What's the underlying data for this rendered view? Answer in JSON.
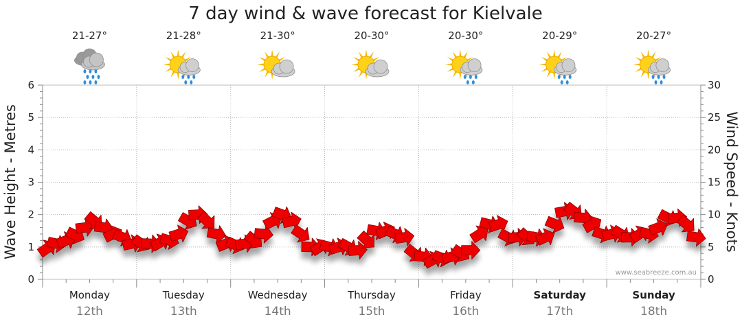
{
  "chart_data": {
    "type": "line",
    "title": "7 day wind & wave forecast for Kielvale",
    "y_left_label": "Wave Height - Metres",
    "y_right_label": "Wind Speed - Knots",
    "y_left_range": [
      0,
      6
    ],
    "y_right_range": [
      0,
      30
    ],
    "y_left_ticks": [
      "0",
      "1",
      "2",
      "3",
      "4",
      "5",
      "6"
    ],
    "y_right_ticks": [
      "0",
      "5",
      "10",
      "15",
      "20",
      "25",
      "30"
    ],
    "grid": true,
    "credit": "www.seabreeze.com.au",
    "days": [
      {
        "day": "Monday",
        "date": "12th",
        "temp": "21-27°",
        "icon": "rain-cloud-icon",
        "bold": false
      },
      {
        "day": "Tuesday",
        "date": "13th",
        "temp": "21-28°",
        "icon": "sun-rain-icon",
        "bold": false
      },
      {
        "day": "Wednesday",
        "date": "14th",
        "temp": "21-30°",
        "icon": "sun-cloud-icon",
        "bold": false
      },
      {
        "day": "Thursday",
        "date": "15th",
        "temp": "20-30°",
        "icon": "sun-cloud-icon",
        "bold": false
      },
      {
        "day": "Friday",
        "date": "16th",
        "temp": "20-30°",
        "icon": "sun-rain-icon",
        "bold": false
      },
      {
        "day": "Saturday",
        "date": "17th",
        "temp": "20-29°",
        "icon": "sun-rain-icon",
        "bold": true
      },
      {
        "day": "Sunday",
        "date": "18th",
        "temp": "20-27°",
        "icon": "sun-rain-icon",
        "bold": true
      }
    ],
    "series": [
      {
        "name": "Wind Speed",
        "color": "#ee0000",
        "x_days": [
          0,
          0.1,
          0.2,
          0.3,
          0.4,
          0.5,
          0.6,
          0.7,
          0.8,
          0.9,
          1.0,
          1.1,
          1.2,
          1.3,
          1.4,
          1.5,
          1.6,
          1.7,
          1.8,
          1.9,
          2.0,
          2.1,
          2.2,
          2.3,
          2.4,
          2.5,
          2.6,
          2.7,
          2.8,
          2.9,
          3.0,
          3.1,
          3.2,
          3.3,
          3.4,
          3.5,
          3.6,
          3.7,
          3.8,
          3.9,
          4.0,
          4.1,
          4.2,
          4.3,
          4.4,
          4.5,
          4.6,
          4.7,
          4.8,
          4.9,
          5.0,
          5.1,
          5.2,
          5.3,
          5.4,
          5.5,
          5.6,
          5.7,
          5.8,
          5.9,
          6.0,
          6.1,
          6.2,
          6.3,
          6.4,
          6.5,
          6.6,
          6.7,
          6.8,
          6.9
        ],
        "knots": [
          4.8,
          5.5,
          6,
          6.8,
          8,
          9,
          8,
          7,
          6.5,
          5.5,
          5.5,
          5.5,
          5.7,
          6,
          7,
          9,
          10,
          9,
          7,
          5.5,
          5.3,
          5.5,
          6,
          7,
          9,
          10,
          9,
          7,
          5,
          5,
          5,
          5,
          5,
          4.5,
          6,
          7.5,
          7.5,
          7,
          6.5,
          4,
          3.5,
          3,
          3.3,
          3.5,
          4,
          4.5,
          7,
          8.5,
          8.5,
          6.5,
          6.5,
          6.5,
          6.5,
          6.5,
          8.5,
          10.5,
          10.5,
          9.5,
          8.5,
          7,
          7,
          7,
          6.5,
          7,
          7,
          8,
          9.5,
          9.5,
          8.5,
          6.5
        ]
      }
    ]
  }
}
